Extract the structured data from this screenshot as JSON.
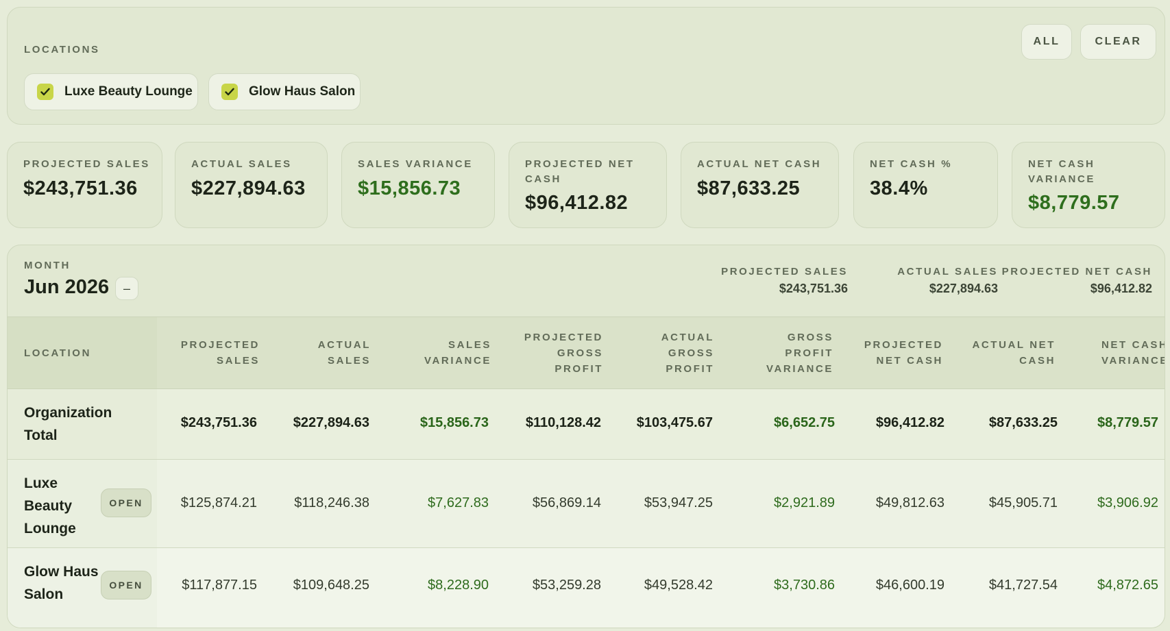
{
  "locations": {
    "title": "LOCATIONS",
    "all_label": "ALL",
    "clear_label": "CLEAR",
    "chips": [
      {
        "label": "Luxe Beauty Lounge",
        "checked": true
      },
      {
        "label": "Glow Haus Salon",
        "checked": true
      }
    ]
  },
  "kpis": [
    {
      "label": "PROJECTED SALES",
      "value": "$243,751.36"
    },
    {
      "label": "ACTUAL SALES",
      "value": "$227,894.63"
    },
    {
      "label": "SALES VARIANCE",
      "value": "$15,856.73"
    },
    {
      "label": "PROJECTED NET CASH",
      "value": "$96,412.82"
    },
    {
      "label": "ACTUAL NET CASH",
      "value": "$87,633.25"
    },
    {
      "label": "NET CASH %",
      "value": "38.4%"
    },
    {
      "label": "NET CASH VARIANCE",
      "value": "$8,779.57"
    }
  ],
  "month": {
    "caption": "MONTH",
    "value": "Jun 2026",
    "collapse_label": "–",
    "summary": [
      {
        "label": "PROJECTED SALES",
        "value": "$243,751.36"
      },
      {
        "label": "ACTUAL SALES",
        "value": "$227,894.63"
      },
      {
        "label": "PROJECTED NET CASH",
        "value": "$96,412.82"
      }
    ]
  },
  "table": {
    "headers": {
      "location": "LOCATION",
      "projected_sales": "PROJECTED SALES",
      "actual_sales": "ACTUAL SALES",
      "sales_variance": "SALES VARIANCE",
      "projected_gross_profit": "PROJECTED GROSS PROFIT",
      "actual_gross_profit": "ACTUAL GROSS PROFIT",
      "gross_profit_variance": "GROSS PROFIT VARIANCE",
      "projected_net_cash": "PROJECTED NET CASH",
      "actual_net_cash": "ACTUAL NET CASH",
      "net_cash_variance": "NET CASH VARIANCE"
    },
    "open_label": "OPEN",
    "rows": [
      {
        "location": "Organization Total",
        "values": [
          "$243,751.36",
          "$227,894.63",
          "$15,856.73",
          "$110,128.42",
          "$103,475.67",
          "$6,652.75",
          "$96,412.82",
          "$87,633.25",
          "$8,779.57"
        ]
      },
      {
        "location": "Luxe Beauty Lounge",
        "values": [
          "$125,874.21",
          "$118,246.38",
          "$7,627.83",
          "$56,869.14",
          "$53,947.25",
          "$2,921.89",
          "$49,812.63",
          "$45,905.71",
          "$3,906.92"
        ]
      },
      {
        "location": "Glow Haus Salon",
        "values": [
          "$117,877.15",
          "$109,648.25",
          "$8,228.90",
          "$53,259.28",
          "$49,528.42",
          "$3,730.86",
          "$46,600.19",
          "$41,727.54",
          "$4,872.65"
        ]
      }
    ]
  },
  "colors": {
    "background": "#e6ecd9",
    "positive_green": "#2e6e1d",
    "checkbox_accent": "#c8d548"
  }
}
